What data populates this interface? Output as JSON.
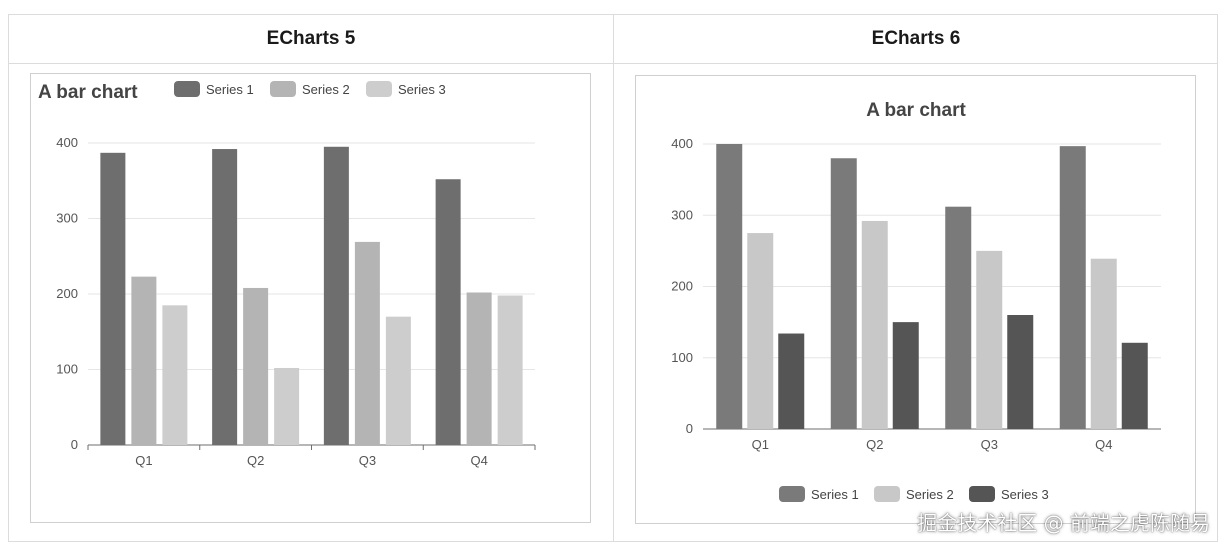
{
  "headers": {
    "left": "ECharts 5",
    "right": "ECharts 6"
  },
  "watermark": "掘金技术社区 @ 前端之虎陈随易",
  "chart_data": [
    {
      "type": "bar",
      "title": "A bar chart",
      "categories": [
        "Q1",
        "Q2",
        "Q3",
        "Q4"
      ],
      "series": [
        {
          "name": "Series 1",
          "values": [
            387,
            392,
            395,
            352
          ],
          "color": "#6e6e6e"
        },
        {
          "name": "Series 2",
          "values": [
            223,
            208,
            269,
            202
          ],
          "color": "#b4b4b4"
        },
        {
          "name": "Series 3",
          "values": [
            185,
            102,
            170,
            198
          ],
          "color": "#cdcdcd"
        }
      ],
      "yticks": [
        0,
        100,
        200,
        300,
        400
      ],
      "ylim": [
        0,
        400
      ],
      "grid": true,
      "legend": "top",
      "title_position": "top-left"
    },
    {
      "type": "bar",
      "title": "A bar chart",
      "categories": [
        "Q1",
        "Q2",
        "Q3",
        "Q4"
      ],
      "series": [
        {
          "name": "Series 1",
          "values": [
            400,
            380,
            312,
            397
          ],
          "color": "#7a7a7a"
        },
        {
          "name": "Series 2",
          "values": [
            275,
            292,
            250,
            239
          ],
          "color": "#c8c8c8"
        },
        {
          "name": "Series 3",
          "values": [
            134,
            150,
            160,
            121
          ],
          "color": "#555555"
        }
      ],
      "yticks": [
        0,
        100,
        200,
        300,
        400
      ],
      "ylim": [
        0,
        400
      ],
      "grid": true,
      "legend": "bottom",
      "title_position": "top-center"
    }
  ]
}
